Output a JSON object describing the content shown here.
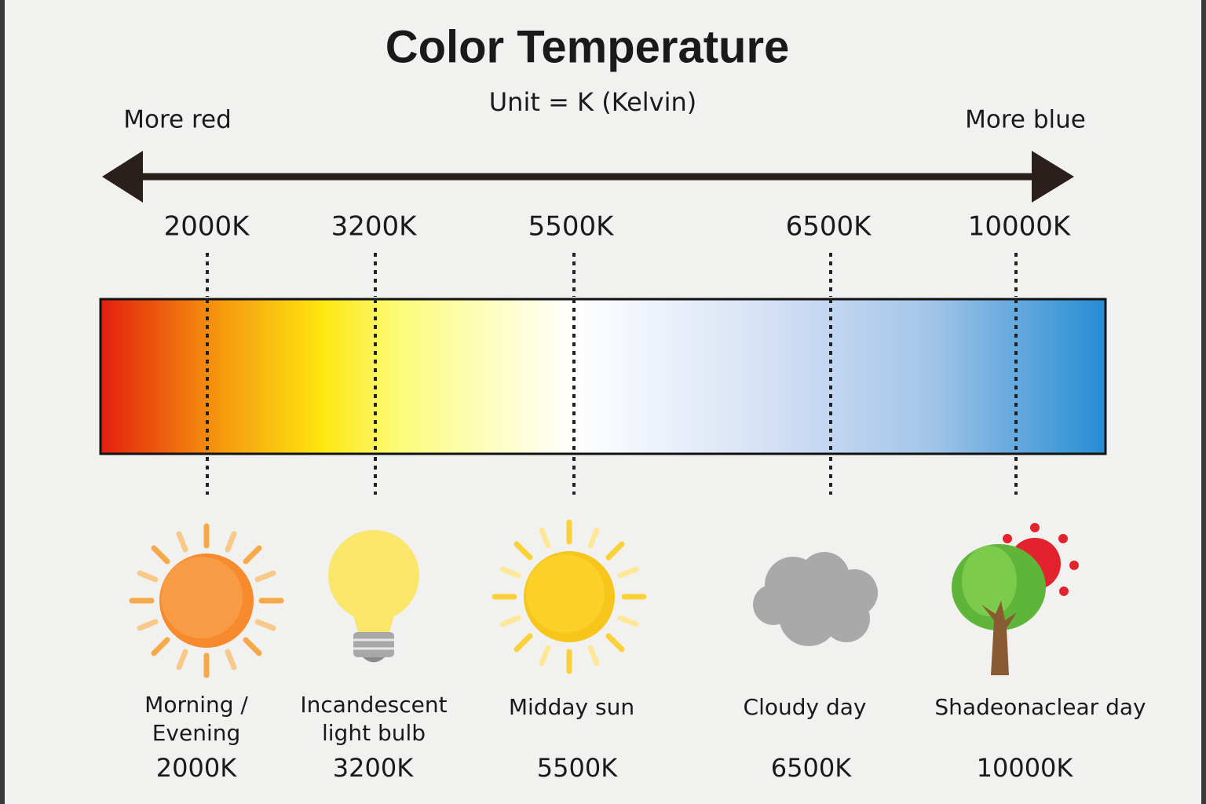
{
  "title": "Color Temperature",
  "subtitle": "Unit = K (Kelvin)",
  "scale": {
    "left_label": "More red",
    "right_label": "More blue"
  },
  "markers": [
    "2000K",
    "3200K",
    "5500K",
    "6500K",
    "10000K"
  ],
  "items": [
    {
      "caption": [
        "Morning /",
        "Evening"
      ],
      "value": "2000K"
    },
    {
      "caption": [
        "Incandescent",
        "light bulb"
      ],
      "value": "3200K"
    },
    {
      "caption": [
        "Midday sun"
      ],
      "value": "5500K"
    },
    {
      "caption": [
        "Cloudy day"
      ],
      "value": "6500K"
    },
    {
      "caption": [
        "Shadeonaclear day"
      ],
      "value": "10000K"
    }
  ]
}
